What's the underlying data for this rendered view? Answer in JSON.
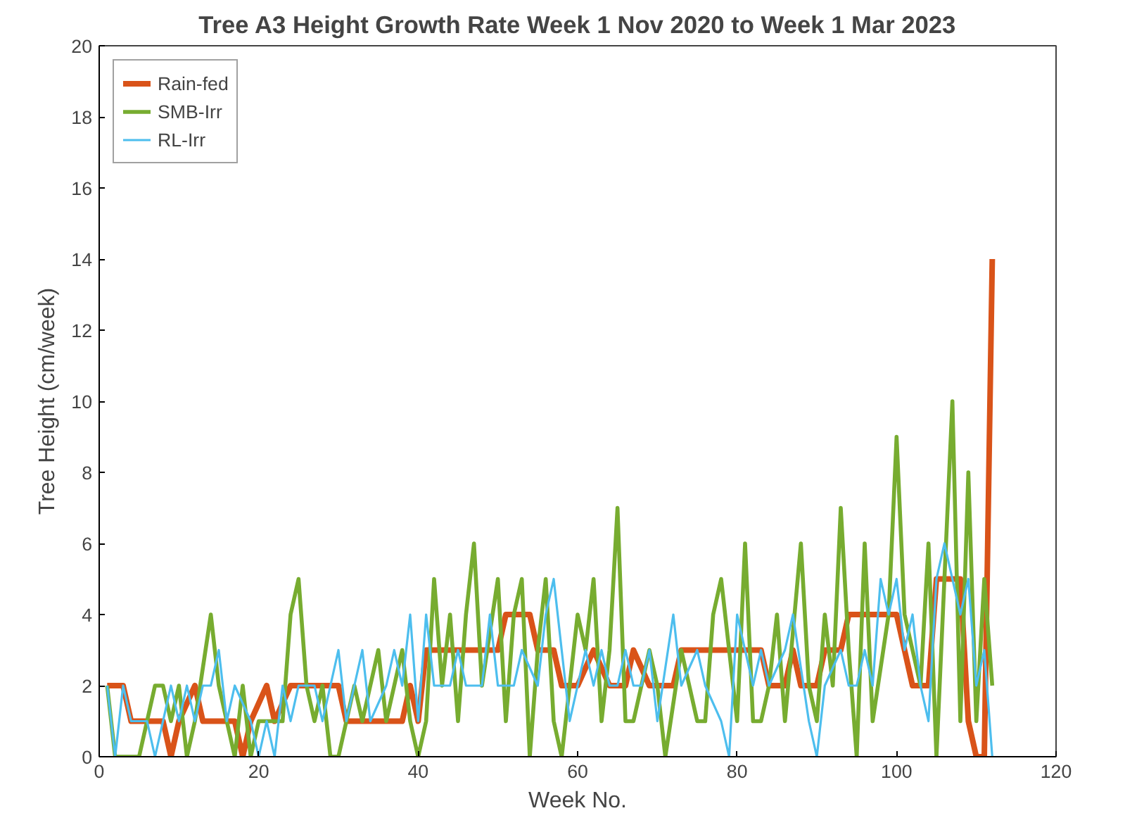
{
  "chart_data": {
    "type": "line",
    "title": "Tree A3 Height Growth Rate Week 1 Nov 2020 to Week 1 Mar 2023",
    "xlabel": "Week No.",
    "ylabel": "Tree Height (cm/week)",
    "xlim": [
      0,
      120
    ],
    "ylim": [
      0,
      20
    ],
    "xticks": [
      0,
      20,
      40,
      60,
      80,
      100,
      120
    ],
    "yticks": [
      0,
      2,
      4,
      6,
      8,
      10,
      12,
      14,
      16,
      18,
      20
    ],
    "grid": false,
    "legend": "top left",
    "line_style": "solid",
    "marker": "none",
    "series": [
      {
        "name": "Rain-fed",
        "color": "#d95319",
        "x": [
          1,
          3,
          4,
          8,
          9,
          10,
          12,
          13,
          17,
          18,
          19,
          21,
          22,
          24,
          30,
          31,
          38,
          39,
          40,
          41,
          50,
          51,
          54,
          55,
          57,
          58,
          60,
          62,
          64,
          66,
          67,
          69,
          72,
          73,
          83,
          84,
          86,
          87,
          88,
          90,
          91,
          93,
          94,
          100,
          101,
          102,
          104,
          105,
          108,
          109,
          110,
          111,
          112
        ],
        "values": [
          2,
          2,
          1,
          1,
          0,
          1,
          2,
          1,
          1,
          0,
          1,
          2,
          1,
          2,
          2,
          1,
          1,
          2,
          1,
          3,
          3,
          4,
          4,
          3,
          3,
          2,
          2,
          3,
          2,
          2,
          3,
          2,
          2,
          3,
          3,
          2,
          2,
          3,
          2,
          2,
          3,
          3,
          4,
          4,
          3,
          2,
          2,
          5,
          5,
          1,
          0,
          0,
          14
        ]
      },
      {
        "name": "SMB-Irr",
        "color": "#77ac30",
        "x": [
          1,
          2,
          5,
          7,
          8,
          9,
          10,
          11,
          12,
          14,
          15,
          16,
          17,
          18,
          19,
          20,
          23,
          24,
          25,
          26,
          27,
          28,
          29,
          30,
          31,
          32,
          33,
          35,
          36,
          38,
          39,
          40,
          41,
          42,
          43,
          44,
          45,
          46,
          47,
          48,
          50,
          51,
          52,
          53,
          54,
          55,
          56,
          57,
          58,
          59,
          60,
          61,
          62,
          63,
          64,
          65,
          66,
          67,
          69,
          70,
          71,
          73,
          75,
          76,
          77,
          78,
          79,
          80,
          81,
          82,
          83,
          84,
          85,
          86,
          88,
          89,
          90,
          91,
          92,
          93,
          94,
          95,
          96,
          97,
          99,
          100,
          101,
          102,
          103,
          104,
          105,
          107,
          108,
          109,
          110,
          111,
          112
        ],
        "values": [
          2,
          0,
          0,
          2,
          2,
          1,
          2,
          0,
          1,
          4,
          2,
          1,
          0,
          2,
          0,
          1,
          1,
          4,
          5,
          2,
          1,
          2,
          0,
          0,
          1,
          2,
          1,
          3,
          1,
          3,
          1,
          0,
          1,
          5,
          2,
          4,
          1,
          4,
          6,
          2,
          5,
          1,
          4,
          5,
          0,
          3,
          5,
          1,
          0,
          2,
          4,
          3,
          5,
          1,
          3,
          7,
          1,
          1,
          3,
          2,
          0,
          3,
          1,
          1,
          4,
          5,
          3,
          1,
          6,
          1,
          1,
          2,
          4,
          1,
          6,
          2,
          1,
          4,
          2,
          7,
          3,
          0,
          6,
          1,
          4,
          9,
          4,
          3,
          2,
          6,
          0,
          10,
          1,
          8,
          1,
          5,
          2
        ]
      },
      {
        "name": "RL-Irr",
        "color": "#4dbeee",
        "x": [
          1,
          2,
          3,
          4,
          6,
          7,
          8,
          9,
          10,
          11,
          12,
          13,
          14,
          15,
          16,
          17,
          19,
          20,
          21,
          22,
          23,
          24,
          25,
          27,
          28,
          30,
          31,
          32,
          33,
          34,
          36,
          37,
          38,
          39,
          40,
          41,
          42,
          44,
          45,
          46,
          48,
          49,
          50,
          52,
          53,
          55,
          56,
          57,
          58,
          59,
          60,
          61,
          62,
          63,
          64,
          65,
          66,
          67,
          68,
          69,
          70,
          72,
          73,
          75,
          76,
          78,
          79,
          80,
          81,
          82,
          83,
          84,
          86,
          87,
          89,
          90,
          91,
          93,
          94,
          95,
          96,
          97,
          98,
          99,
          100,
          101,
          102,
          103,
          104,
          105,
          106,
          107,
          108,
          109,
          110,
          111,
          112
        ],
        "values": [
          2,
          0,
          2,
          1,
          1,
          0,
          1,
          2,
          1,
          2,
          1,
          2,
          2,
          3,
          1,
          2,
          1,
          0,
          1,
          0,
          2,
          1,
          2,
          2,
          1,
          3,
          1,
          2,
          3,
          1,
          2,
          3,
          2,
          4,
          1,
          4,
          2,
          2,
          3,
          2,
          2,
          4,
          2,
          2,
          3,
          2,
          4,
          5,
          3,
          1,
          2,
          3,
          2,
          3,
          2,
          2,
          3,
          2,
          2,
          3,
          1,
          4,
          2,
          3,
          2,
          1,
          0,
          4,
          3,
          2,
          3,
          2,
          3,
          4,
          1,
          0,
          2,
          3,
          2,
          2,
          3,
          2,
          5,
          4,
          5,
          3,
          4,
          2,
          1,
          5,
          6,
          5,
          4,
          5,
          2,
          3,
          0
        ]
      }
    ]
  }
}
